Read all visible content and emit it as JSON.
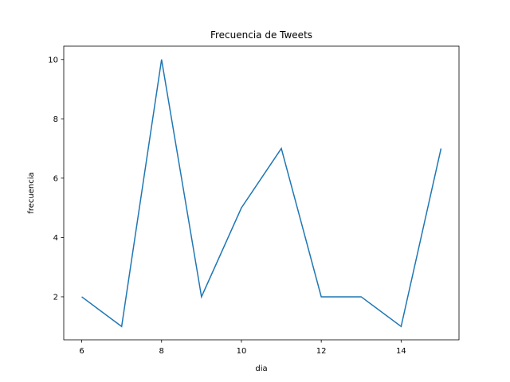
{
  "chart_data": {
    "type": "line",
    "title": "Frecuencia de Tweets",
    "xlabel": "dia",
    "ylabel": "frecuencia",
    "xlim": [
      5.55,
      15.45
    ],
    "ylim": [
      0.55,
      10.45
    ],
    "xticks": [
      6,
      8,
      10,
      12,
      14
    ],
    "yticks": [
      2,
      4,
      6,
      8,
      10
    ],
    "grid": false,
    "series": [
      {
        "color": "#1f77b4",
        "x": [
          6,
          7,
          8,
          9,
          10,
          11,
          12,
          13,
          14,
          15
        ],
        "y": [
          2,
          1,
          10,
          2,
          5,
          7,
          2,
          2,
          1,
          7
        ]
      }
    ]
  }
}
